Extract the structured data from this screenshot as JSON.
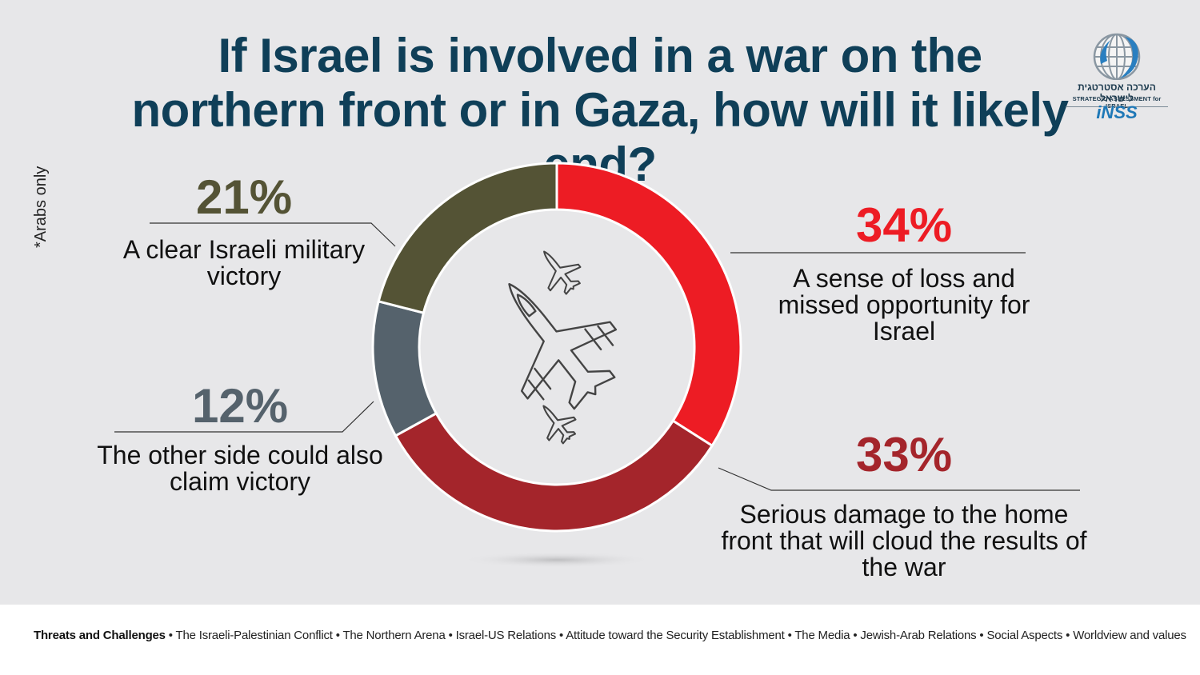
{
  "chart_data": {
    "type": "pie",
    "style": "donut",
    "title": "If Israel is involved in a war on the northern front or in Gaza, how will it likely end?",
    "start_angle": "12 o'clock",
    "direction": "clockwise",
    "slices": [
      {
        "value": 34,
        "value_label": "34%",
        "label": "A sense of loss and missed opportunity for Israel",
        "color": "#ed1c24"
      },
      {
        "value": 33,
        "value_label": "33%",
        "label": "Serious damage to the home front that will cloud the results of the war",
        "color": "#a4252b"
      },
      {
        "value": 12,
        "value_label": "12%",
        "label": "The other side could also claim victory",
        "color": "#55626c"
      },
      {
        "value": 21,
        "value_label": "21%",
        "label": "A clear Israeli military victory",
        "color": "#545335"
      }
    ]
  },
  "side_note": "*Arabs only",
  "logo": {
    "hebrew": "הערכה אסטרטגית לישראל",
    "english": "STRATEGIC ASSESSMENT for ISRAEL",
    "brand": "iNSS",
    "icon": "globe-icon"
  },
  "center_icon": "fighter-jets-icon",
  "footer": {
    "category": "Threats and Challenges",
    "separator": "•",
    "items": [
      "The Israeli-Palestinian Conflict",
      "The Northern  Arena",
      "Israel-US Relations",
      "Attitude toward the Security Establishment",
      "The Media",
      "Jewish-Arab Relations",
      "Social Aspects",
      "Worldview and values"
    ]
  }
}
